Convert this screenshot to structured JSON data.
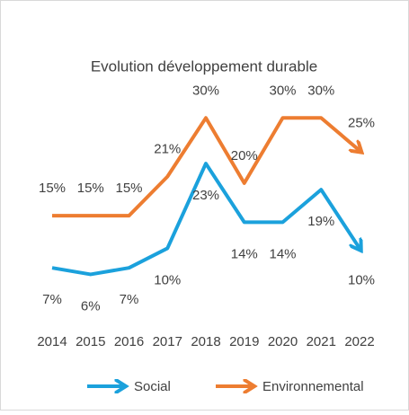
{
  "chart_data": {
    "type": "line",
    "title": "Evolution développement durable",
    "categories": [
      "2014",
      "2015",
      "2016",
      "2017",
      "2018",
      "2019",
      "2020",
      "2021",
      "2022"
    ],
    "series": [
      {
        "name": "Social",
        "color": "#1ba1dc",
        "values": [
          7,
          6,
          7,
          10,
          23,
          14,
          14,
          19,
          10
        ],
        "value_labels": [
          "7%",
          "6%",
          "7%",
          "10%",
          "23%",
          "14%",
          "14%",
          "19%",
          "10%"
        ]
      },
      {
        "name": "Environnemental",
        "color": "#ed7d31",
        "values": [
          15,
          15,
          15,
          21,
          30,
          20,
          30,
          30,
          25
        ],
        "value_labels": [
          "15%",
          "15%",
          "15%",
          "21%",
          "30%",
          "20%",
          "30%",
          "30%",
          "25%"
        ]
      }
    ],
    "ylim": [
      0,
      35
    ],
    "legend": "bottom"
  }
}
